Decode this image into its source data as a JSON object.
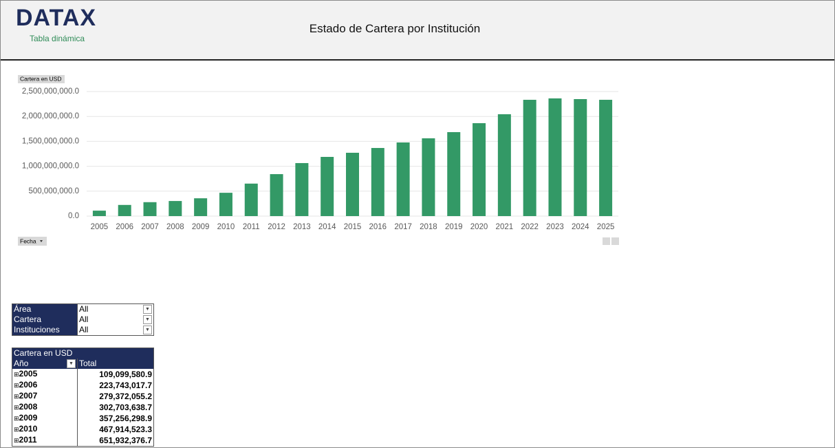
{
  "header": {
    "logo": "DATAX",
    "subtitle": "Tabla dinámica",
    "title": "Estado de Cartera por Institución"
  },
  "chart_data": {
    "type": "bar",
    "value_button": "Cartera en USD",
    "axis_button": "Fecha",
    "color": "#339966",
    "categories": [
      "2005",
      "2006",
      "2007",
      "2008",
      "2009",
      "2010",
      "2011",
      "2012",
      "2013",
      "2014",
      "2015",
      "2016",
      "2017",
      "2018",
      "2019",
      "2020",
      "2021",
      "2022",
      "2023",
      "2024",
      "2025"
    ],
    "values": [
      109099580.9,
      223743017.7,
      279372055.2,
      302703638.7,
      357256298.9,
      467914523.3,
      651932376.7,
      842000000,
      1064000000,
      1188000000,
      1271000000,
      1367000000,
      1478000000,
      1561000000,
      1685000000,
      1865000000,
      2044000000,
      2334000000,
      2362000000,
      2348000000,
      2334000000
    ],
    "ylim": [
      0,
      2500000000
    ],
    "yticks": [
      {
        "value": 0,
        "label": "0.0"
      },
      {
        "value": 500000000,
        "label": "500,000,000.0"
      },
      {
        "value": 1000000000,
        "label": "1,000,000,000.0"
      },
      {
        "value": 1500000000,
        "label": "1,500,000,000.0"
      },
      {
        "value": 2000000000,
        "label": "2,000,000,000.0"
      },
      {
        "value": 2500000000,
        "label": "2,500,000,000.0"
      }
    ],
    "grid": true
  },
  "filters": [
    [
      "Área",
      "All"
    ],
    [
      "Cartera",
      "All"
    ],
    [
      "Instituciones",
      "All"
    ]
  ],
  "pivot": {
    "measure": "Cartera en USD",
    "columns": [
      "Año",
      "Total"
    ],
    "rows": [
      [
        "2005",
        "109,099,580.9"
      ],
      [
        "2006",
        "223,743,017.7"
      ],
      [
        "2007",
        "279,372,055.2"
      ],
      [
        "2008",
        "302,703,638.7"
      ],
      [
        "2009",
        "357,256,298.9"
      ],
      [
        "2010",
        "467,914,523.3"
      ],
      [
        "2011",
        "651,932,376.7"
      ]
    ]
  }
}
